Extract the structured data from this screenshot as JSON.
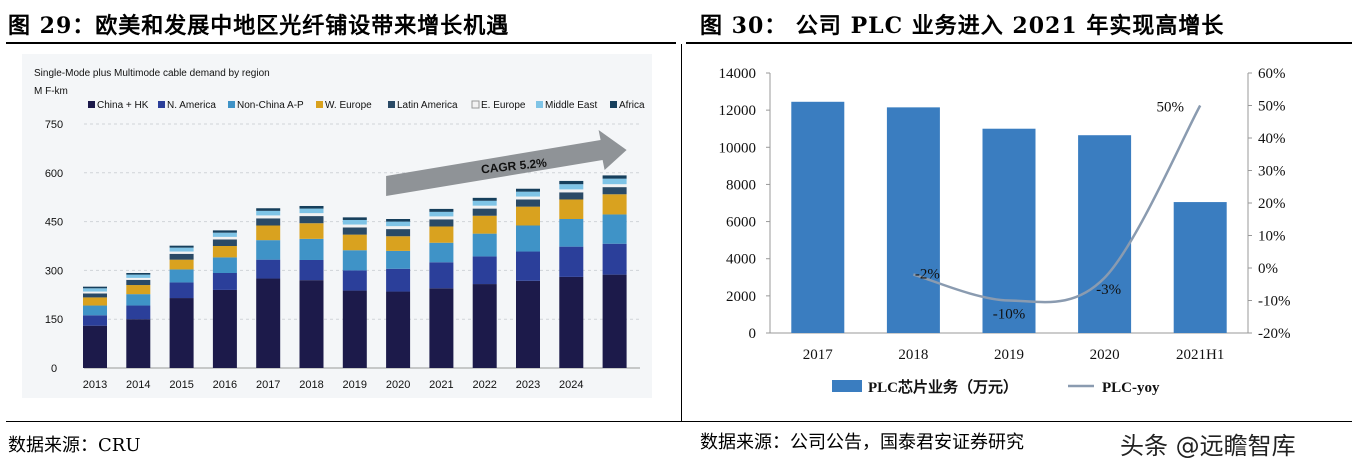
{
  "left": {
    "figure_title": "图 29：欧美和发展中地区光纤铺设带来增长机遇",
    "source": "数据来源：CRU"
  },
  "right": {
    "figure_title": "图 30：  公司 PLC 业务进入 2021 年实现高增长",
    "source": "数据来源：公司公告，国泰君安证券研究"
  },
  "watermark": "头条 @远瞻智库",
  "colors": {
    "china_hk": "#1c1a4a",
    "n_america": "#2b3f9a",
    "non_china_ap": "#3f93c7",
    "w_europe": "#d9a21f",
    "latin_america": "#2a4a66",
    "e_europe": "#f2f2f2",
    "middle_east": "#7fc4e6",
    "africa": "#163f5c",
    "plc_bar": "#3a7dc0",
    "plc_line": "#8a9bb0"
  },
  "chart_data": [
    {
      "type": "bar",
      "stacked": true,
      "title": "Single-Mode plus Multimode cable demand by region",
      "ylabel": "M F-km",
      "ylim": [
        0,
        750
      ],
      "yticks": [
        0,
        150,
        300,
        450,
        600,
        750
      ],
      "categories": [
        "2013",
        "2014",
        "2015",
        "2016",
        "2017",
        "2018",
        "2019",
        "2020",
        "2021",
        "2022",
        "2023",
        "2024",
        ""
      ],
      "series": [
        {
          "name": "China + HK",
          "color_key": "china_hk",
          "values": [
            130,
            150,
            215,
            240,
            275,
            270,
            238,
            235,
            245,
            258,
            268,
            280,
            287
          ]
        },
        {
          "name": "N. America",
          "color_key": "n_america",
          "values": [
            32,
            42,
            48,
            52,
            58,
            62,
            62,
            70,
            80,
            85,
            90,
            93,
            95
          ]
        },
        {
          "name": "Non-China A-P",
          "color_key": "non_china_ap",
          "values": [
            30,
            35,
            40,
            48,
            60,
            65,
            62,
            55,
            60,
            70,
            80,
            85,
            90
          ]
        },
        {
          "name": "W. Europe",
          "color_key": "w_europe",
          "values": [
            25,
            28,
            30,
            35,
            45,
            48,
            48,
            45,
            50,
            55,
            58,
            60,
            62
          ]
        },
        {
          "name": "Latin America",
          "color_key": "latin_america",
          "values": [
            12,
            16,
            18,
            20,
            22,
            22,
            22,
            22,
            22,
            22,
            22,
            22,
            22
          ]
        },
        {
          "name": "E. Europe",
          "color_key": "e_europe",
          "values": [
            6,
            6,
            7,
            8,
            9,
            9,
            9,
            9,
            9,
            9,
            9,
            9,
            9
          ]
        },
        {
          "name": "Middle East",
          "color_key": "middle_east",
          "values": [
            10,
            10,
            12,
            13,
            14,
            14,
            14,
            14,
            14,
            15,
            15,
            16,
            17
          ]
        },
        {
          "name": "Africa",
          "color_key": "africa",
          "values": [
            5,
            5,
            6,
            7,
            8,
            8,
            8,
            8,
            9,
            9,
            9,
            10,
            10
          ]
        }
      ],
      "annotations": [
        {
          "text": "CAGR 5.2%",
          "from_index": 7,
          "to_index": 12
        }
      ],
      "legend": "top"
    },
    {
      "type": "bar+line",
      "categories": [
        "2017",
        "2018",
        "2019",
        "2020",
        "2021H1"
      ],
      "bar_series": {
        "name": "PLC芯片业务（万元）",
        "color_key": "plc_bar",
        "values": [
          12450,
          12150,
          11000,
          10650,
          7050
        ]
      },
      "line_series": {
        "name": "PLC-yoy",
        "color_key": "plc_line",
        "values": [
          null,
          -2,
          -10,
          -3,
          50
        ],
        "labels": [
          "",
          "-2%",
          "-10%",
          "-3%",
          "50%"
        ]
      },
      "y_left": {
        "min": 0,
        "max": 14000,
        "ticks": [
          "0",
          "2000",
          "4000",
          "6000",
          "8000",
          "10000",
          "12000",
          "14000"
        ]
      },
      "y_right": {
        "min": -20,
        "max": 60,
        "ticks": [
          "-20%",
          "-10%",
          "0%",
          "10%",
          "20%",
          "30%",
          "40%",
          "50%",
          "60%"
        ]
      },
      "legend": "bottom"
    }
  ]
}
